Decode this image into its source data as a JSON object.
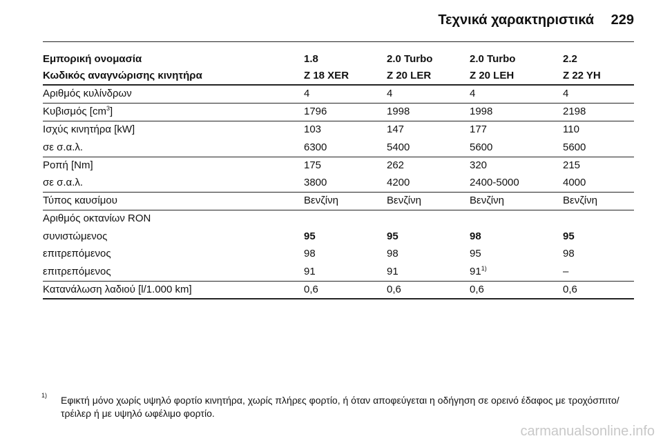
{
  "header": {
    "title": "Τεχνικά χαρακτηριστικά",
    "page": "229"
  },
  "table": {
    "header": [
      [
        "Εμπορική ονομασία",
        "1.8",
        "2.0 Turbo",
        "2.0 Turbo",
        "2.2"
      ],
      [
        "Κωδικός αναγνώρισης κινητήρα",
        "Z 18 XER",
        "Z 20 LER",
        "Z 20 LEH",
        "Z 22 YH"
      ]
    ],
    "groups": [
      [
        {
          "label": "Αριθμός κυλίνδρων",
          "cells": [
            "4",
            "4",
            "4",
            "4"
          ]
        }
      ],
      [
        {
          "label": {
            "text": "Κυβισμός [cm",
            "sup": "3",
            "after": "]"
          },
          "cells": [
            "1796",
            "1998",
            "1998",
            "2198"
          ]
        }
      ],
      [
        {
          "label": "Ισχύς κινητήρα [kW]",
          "cells": [
            "103",
            "147",
            "177",
            "110"
          ]
        },
        {
          "label": "σε σ.α.λ.",
          "cells": [
            "6300",
            "5400",
            "5600",
            "5600"
          ]
        }
      ],
      [
        {
          "label": "Ροπή [Nm]",
          "cells": [
            "175",
            "262",
            "320",
            "215"
          ]
        },
        {
          "label": "σε σ.α.λ.",
          "cells": [
            "3800",
            "4200",
            "2400-5000",
            "4000"
          ]
        }
      ],
      [
        {
          "label": "Τύπος καυσίμου",
          "cells": [
            "Βενζίνη",
            "Βενζίνη",
            "Βενζίνη",
            "Βενζίνη"
          ]
        }
      ],
      [
        {
          "label": "Αριθμός οκτανίων RON"
        },
        {
          "label": "συνιστώμενος",
          "cells": [
            "95",
            "95",
            "98",
            "95"
          ],
          "bold": true
        },
        {
          "label": "επιτρεπόμενος",
          "cells": [
            "98",
            "98",
            "95",
            "98"
          ]
        },
        {
          "label": "επιτρεπόμενος",
          "cells": [
            "91",
            "91",
            {
              "text": "91",
              "sup": "1)"
            },
            "–"
          ]
        }
      ],
      [
        {
          "label": "Κατανάλωση λαδιού [l/1.000 km]",
          "cells": [
            "0,6",
            "0,6",
            "0,6",
            "0,6"
          ]
        }
      ]
    ]
  },
  "footnote": {
    "marker": "1)",
    "text": "Εφικτή μόνο χωρίς υψηλό φορτίο κινητήρα, χωρίς πλήρες φορτίο, ή όταν αποφεύγεται η οδήγηση σε ορεινό έδαφος με τροχόσπιτο/τρέιλερ ή με υψηλό ωφέλιμο φορτίο."
  },
  "watermark": "carmanualsonline.info"
}
